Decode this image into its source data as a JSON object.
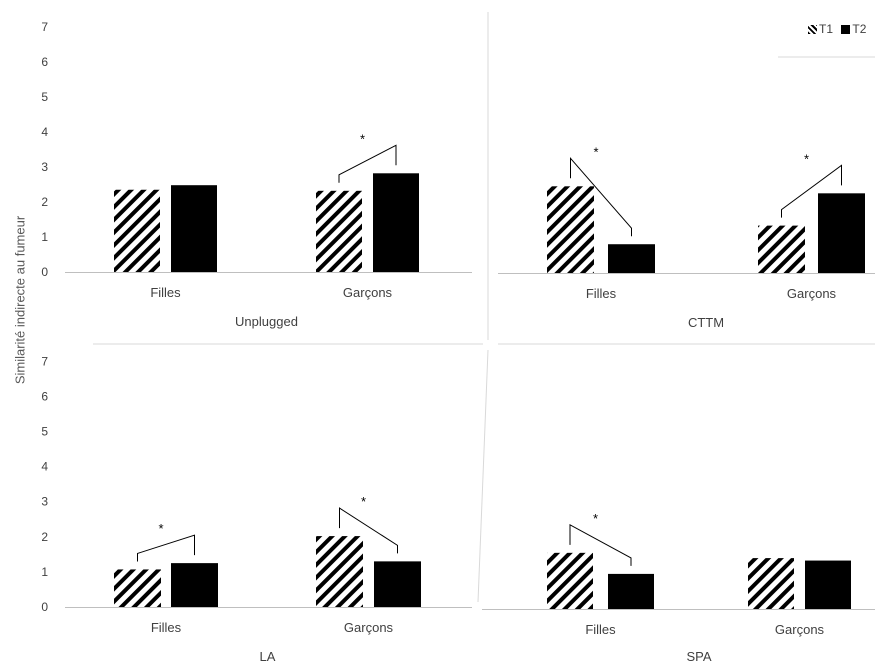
{
  "ylabel": "Similarité indirecte au fumeur",
  "legend": [
    {
      "label": "T1",
      "pattern": "hatch"
    },
    {
      "label": "T2",
      "pattern": "solid"
    }
  ],
  "colors": {
    "bar": "#000000",
    "axis": "#bfbfbf",
    "text": "#404040"
  },
  "chart_data": [
    {
      "type": "bar",
      "title": "Unplugged",
      "categories": [
        "Filles",
        "Garçons"
      ],
      "series": [
        {
          "name": "T1",
          "values": [
            2.35,
            2.32
          ]
        },
        {
          "name": "T2",
          "values": [
            2.48,
            2.82
          ]
        }
      ],
      "yticks": [
        0,
        1,
        2,
        3,
        4,
        5,
        6,
        7
      ],
      "ylim": [
        0,
        7
      ],
      "significance": [
        {
          "category": "Garçons",
          "label": "*"
        }
      ],
      "legend_position": "top-right"
    },
    {
      "type": "bar",
      "title": "CTTM",
      "categories": [
        "Filles",
        "Garçons"
      ],
      "series": [
        {
          "name": "T1",
          "values": [
            2.47,
            1.35
          ]
        },
        {
          "name": "T2",
          "values": [
            0.82,
            2.27
          ]
        }
      ],
      "ylim": [
        0,
        7
      ],
      "significance": [
        {
          "category": "Filles",
          "label": "*"
        },
        {
          "category": "Garçons",
          "label": "*"
        }
      ]
    },
    {
      "type": "bar",
      "title": "LA",
      "categories": [
        "Filles",
        "Garçons"
      ],
      "series": [
        {
          "name": "T1",
          "values": [
            1.07,
            2.02
          ]
        },
        {
          "name": "T2",
          "values": [
            1.25,
            1.3
          ]
        }
      ],
      "yticks": [
        0,
        1,
        2,
        3,
        4,
        5,
        6,
        7
      ],
      "ylim": [
        0,
        7
      ],
      "significance": [
        {
          "category": "Filles",
          "label": "*"
        },
        {
          "category": "Garçons",
          "label": "*"
        }
      ]
    },
    {
      "type": "bar",
      "title": "SPA",
      "categories": [
        "Filles",
        "Garçons"
      ],
      "series": [
        {
          "name": "T1",
          "values": [
            1.6,
            1.45
          ]
        },
        {
          "name": "T2",
          "values": [
            1.0,
            1.38
          ]
        }
      ],
      "ylim": [
        0,
        7
      ],
      "significance": [
        {
          "category": "Filles",
          "label": "*"
        }
      ]
    }
  ]
}
